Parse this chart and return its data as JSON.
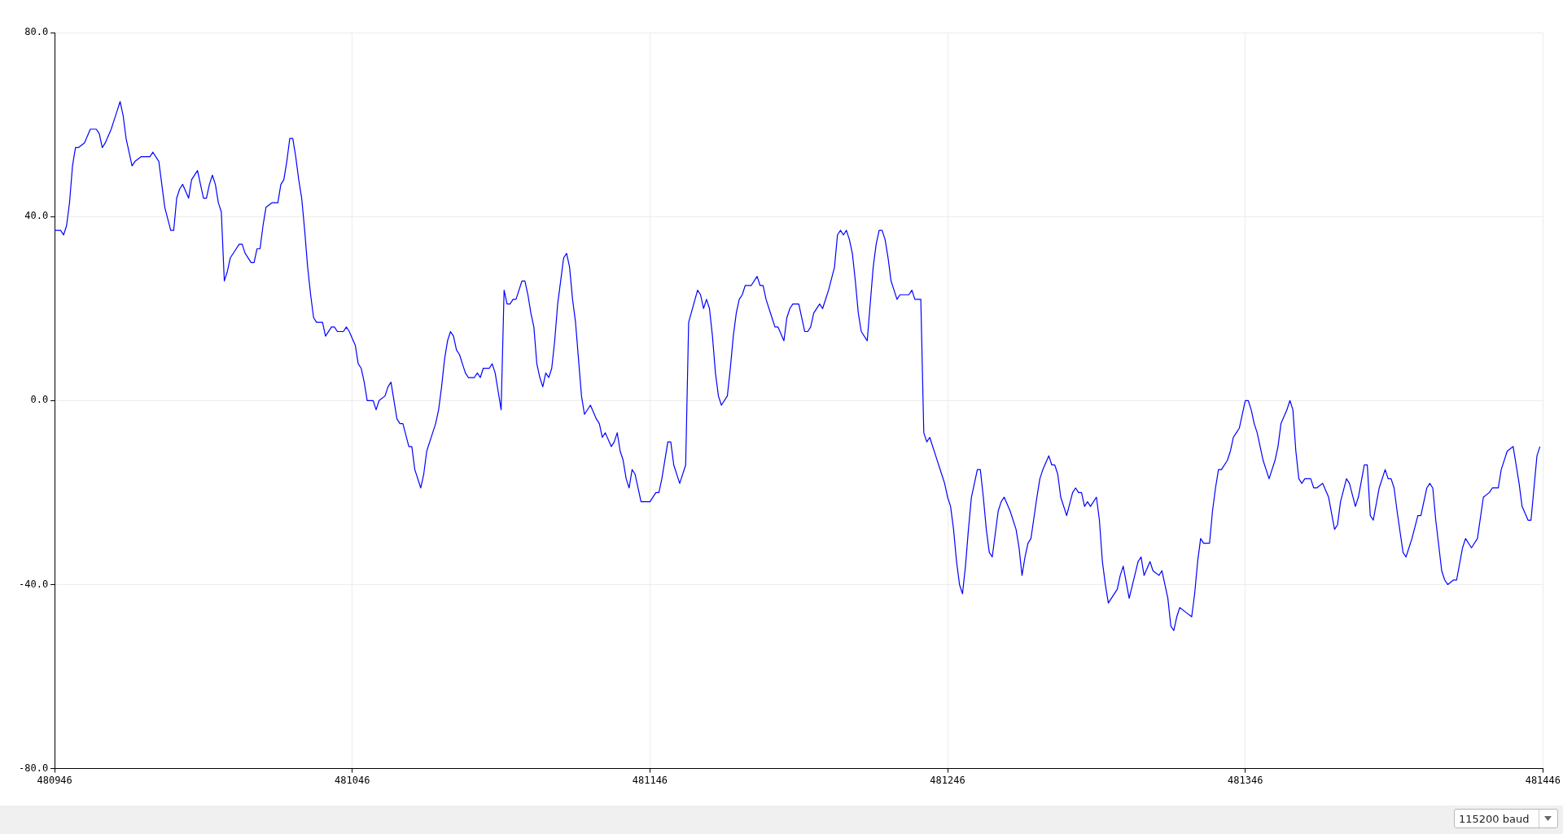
{
  "chart_data": {
    "type": "line",
    "xlim": [
      480946,
      481446
    ],
    "xticks": [
      480946,
      481046,
      481146,
      481246,
      481346,
      481446
    ],
    "ylim": [
      -80,
      80
    ],
    "yticks": [
      {
        "value": -80,
        "label": "-80.0"
      },
      {
        "value": -40,
        "label": "-40.0"
      },
      {
        "value": 0,
        "label": "0.0"
      },
      {
        "value": 40,
        "label": "40.0"
      },
      {
        "value": 80,
        "label": "80.0"
      }
    ],
    "grid": true,
    "annotations": [
      "115200 baud"
    ],
    "series": [
      {
        "color": "#0000ff",
        "x": [
          480946,
          480948,
          480949,
          480950,
          480951,
          480952,
          480953,
          480954,
          480956,
          480958,
          480960,
          480961,
          480962,
          480963,
          480965,
          480966,
          480967,
          480968,
          480969,
          480970,
          480972,
          480973,
          480975,
          480978,
          480979,
          480981,
          480982,
          480983,
          480985,
          480986,
          480987,
          480988,
          480989,
          480991,
          480992,
          480994,
          480995,
          480996,
          480997,
          480998,
          480999,
          481000,
          481001,
          481002,
          481003,
          481004,
          481005,
          481007,
          481008,
          481009,
          481010,
          481012,
          481013,
          481014,
          481015,
          481016,
          481017,
          481019,
          481021,
          481022,
          481023,
          481024,
          481025,
          481026,
          481027,
          481028,
          481029,
          481030,
          481031,
          481032,
          481033,
          481034,
          481036,
          481037,
          481039,
          481040,
          481041,
          481043,
          481044,
          481045,
          481047,
          481048,
          481049,
          481050,
          481051,
          481053,
          481054,
          481055,
          481057,
          481058,
          481059,
          481060,
          481061,
          481062,
          481063,
          481065,
          481066,
          481067,
          481069,
          481070,
          481071,
          481073,
          481074,
          481075,
          481076,
          481077,
          481078,
          481079,
          481080,
          481081,
          481082,
          481083,
          481084,
          481085,
          481087,
          481088,
          481089,
          481090,
          481092,
          481093,
          481094,
          481095,
          481096,
          481097,
          481098,
          481099,
          481100,
          481101,
          481102,
          481103,
          481104,
          481105,
          481106,
          481107,
          481108,
          481109,
          481110,
          481111,
          481112,
          481113,
          481114,
          481115,
          481116,
          481117,
          481118,
          481119,
          481120,
          481121,
          481122,
          481123,
          481124,
          481126,
          481128,
          481129,
          481130,
          481131,
          481133,
          481134,
          481135,
          481136,
          481137,
          481138,
          481139,
          481140,
          481141,
          481142,
          481143,
          481146,
          481148,
          481149,
          481150,
          481151,
          481152,
          481153,
          481154,
          481156,
          481158,
          481159,
          481162,
          481163,
          481164,
          481165,
          481166,
          481167,
          481168,
          481169,
          481170,
          481172,
          481173,
          481174,
          481175,
          481176,
          481177,
          481178,
          481180,
          481182,
          481183,
          481184,
          481185,
          481187,
          481188,
          481189,
          481191,
          481192,
          481193,
          481194,
          481196,
          481197,
          481198,
          481199,
          481200,
          481201,
          481203,
          481204,
          481206,
          481208,
          481209,
          481210,
          481211,
          481212,
          481213,
          481214,
          481215,
          481216,
          481217,
          481219,
          481220,
          481221,
          481222,
          481223,
          481224,
          481225,
          481226,
          481227,
          481228,
          481229,
          481230,
          481233,
          481234,
          481235,
          481237,
          481238,
          481239,
          481240,
          481242,
          481244,
          481245,
          481246,
          481247,
          481248,
          481249,
          481250,
          481251,
          481252,
          481253,
          481254,
          481255,
          481256,
          481257,
          481258,
          481259,
          481260,
          481261,
          481262,
          481263,
          481264,
          481265,
          481267,
          481269,
          481270,
          481271,
          481272,
          481273,
          481274,
          481276,
          481277,
          481278,
          481280,
          481281,
          481282,
          481283,
          481284,
          481286,
          481288,
          481289,
          481290,
          481291,
          481292,
          481293,
          481294,
          481296,
          481297,
          481298,
          481299,
          481300,
          481303,
          481304,
          481305,
          481307,
          481310,
          481311,
          481312,
          481314,
          481315,
          481317,
          481318,
          481319,
          481320,
          481321,
          481322,
          481323,
          481324,
          481326,
          481328,
          481329,
          481330,
          481331,
          481332,
          481334,
          481335,
          481336,
          481337,
          481338,
          481340,
          481341,
          481342,
          481343,
          481344,
          481345,
          481346,
          481347,
          481348,
          481349,
          481350,
          481351,
          481352,
          481353,
          481354,
          481356,
          481357,
          481358,
          481360,
          481361,
          481362,
          481363,
          481364,
          481365,
          481366,
          481368,
          481369,
          481370,
          481372,
          481374,
          481376,
          481377,
          481378,
          481380,
          481381,
          481383,
          481384,
          481386,
          481387,
          481388,
          481389,
          481391,
          481393,
          481394,
          481395,
          481396,
          481397,
          481399,
          481400,
          481402,
          481404,
          481405,
          481407,
          481408,
          481409,
          481410,
          481412,
          481413,
          481414,
          481416,
          481417,
          481419,
          481420,
          481422,
          481424,
          481426,
          481428,
          481429,
          481431,
          481432,
          481434,
          481436,
          481437,
          481438,
          481439,
          481441,
          481442,
          481444,
          481445
        ],
        "values": [
          37,
          37,
          36,
          38,
          43,
          51,
          55,
          55,
          56,
          59,
          59,
          58,
          55,
          56,
          59,
          61,
          63,
          65,
          62,
          57,
          51,
          52,
          53,
          53,
          54,
          52,
          47,
          42,
          37,
          37,
          44,
          46,
          47,
          44,
          48,
          50,
          47,
          44,
          44,
          47,
          49,
          47,
          43,
          41,
          26,
          28,
          31,
          33,
          34,
          34,
          32,
          30,
          30,
          33,
          33,
          38,
          42,
          43,
          43,
          47,
          48,
          52,
          57,
          57,
          53,
          48,
          44,
          37,
          29,
          23,
          18,
          17,
          17,
          14,
          16,
          16,
          15,
          15,
          16,
          15,
          12,
          8,
          7,
          4,
          0,
          0,
          -2,
          0,
          1,
          3,
          4,
          0,
          -4,
          -5,
          -5,
          -10,
          -10,
          -15,
          -19,
          -16,
          -11,
          -7,
          -5,
          -2,
          3,
          9,
          13,
          15,
          14,
          11,
          10,
          8,
          6,
          5,
          5,
          6,
          5,
          7,
          7,
          8,
          6,
          2,
          -2,
          24,
          21,
          21,
          22,
          22,
          24,
          26,
          26,
          23,
          19,
          16,
          8,
          5,
          3,
          6,
          5,
          7,
          13,
          21,
          26,
          31,
          32,
          29,
          22,
          17,
          9,
          1,
          -3,
          -1,
          -4,
          -5,
          -8,
          -7,
          -10,
          -9,
          -7,
          -11,
          -13,
          -17,
          -19,
          -15,
          -16,
          -19,
          -22,
          -22,
          -20,
          -20,
          -17,
          -13,
          -9,
          -9,
          -14,
          -18,
          -14,
          17,
          24,
          23,
          20,
          22,
          20,
          14,
          6,
          1,
          -1,
          1,
          7,
          14,
          19,
          22,
          23,
          25,
          25,
          27,
          25,
          25,
          22,
          18,
          16,
          16,
          13,
          18,
          20,
          21,
          21,
          18,
          15,
          15,
          16,
          19,
          21,
          20,
          24,
          29,
          36,
          37,
          36,
          37,
          35,
          32,
          26,
          19,
          15,
          13,
          21,
          29,
          34,
          37,
          37,
          35,
          31,
          26,
          24,
          22,
          23,
          23,
          24,
          22,
          22,
          -7,
          -9,
          -8,
          -12,
          -16,
          -18,
          -21,
          -23,
          -28,
          -35,
          -40,
          -42,
          -36,
          -28,
          -21,
          -18,
          -15,
          -15,
          -21,
          -28,
          -33,
          -34,
          -29,
          -24,
          -22,
          -21,
          -24,
          -28,
          -32,
          -38,
          -34,
          -31,
          -30,
          -21,
          -17,
          -15,
          -12,
          -14,
          -14,
          -16,
          -21,
          -25,
          -20,
          -19,
          -20,
          -20,
          -23,
          -22,
          -23,
          -21,
          -26,
          -35,
          -40,
          -44,
          -41,
          -38,
          -36,
          -43,
          -35,
          -34,
          -38,
          -35,
          -37,
          -38,
          -37,
          -40,
          -43,
          -49,
          -50,
          -47,
          -45,
          -46,
          -47,
          -42,
          -35,
          -30,
          -31,
          -31,
          -24,
          -19,
          -15,
          -15,
          -13,
          -11,
          -8,
          -7,
          -6,
          -3,
          0,
          0,
          -2,
          -5,
          -7,
          -10,
          -13,
          -15,
          -17,
          -13,
          -10,
          -5,
          -2,
          0,
          -2,
          -11,
          -17,
          -18,
          -17,
          -17,
          -19,
          -19,
          -18,
          -21,
          -28,
          -27,
          -22,
          -17,
          -18,
          -23,
          -21,
          -14,
          -14,
          -25,
          -26,
          -19,
          -15,
          -17,
          -17,
          -19,
          -24,
          -33,
          -34,
          -30,
          -25,
          -25,
          -19,
          -18,
          -19,
          -26,
          -37,
          -39,
          -40,
          -39,
          -39,
          -32,
          -30,
          -32,
          -30,
          -21,
          -20,
          -19,
          -19,
          -15,
          -11,
          -10,
          -14,
          -18,
          -23,
          -26,
          -26,
          -12,
          -10
        ]
      }
    ]
  }
}
